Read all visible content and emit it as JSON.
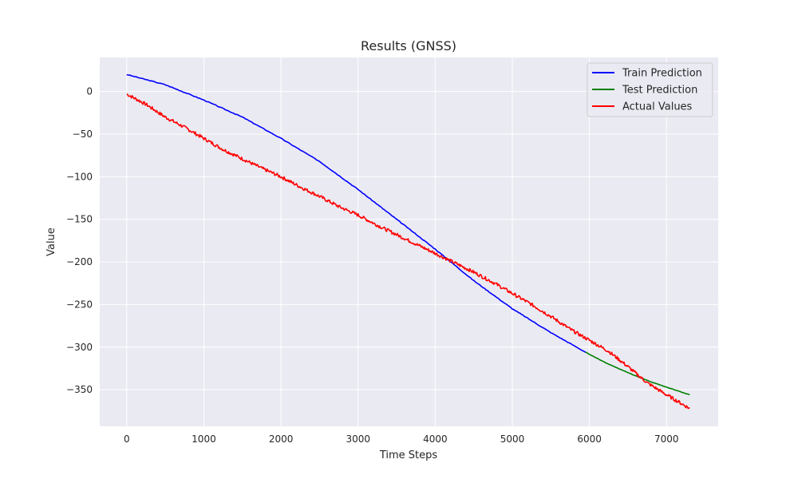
{
  "chart_data": {
    "type": "line",
    "title": "Results (GNSS)",
    "xlabel": "Time Steps",
    "ylabel": "Value",
    "xlim": [
      -350,
      7670
    ],
    "ylim": [
      -393,
      40
    ],
    "xticks": [
      0,
      1000,
      2000,
      3000,
      4000,
      5000,
      6000,
      7000
    ],
    "yticks": [
      0,
      -50,
      -100,
      -150,
      -200,
      -250,
      -300,
      -350
    ],
    "ytick_labels": [
      "0",
      "−50",
      "−100",
      "−150",
      "−200",
      "−250",
      "−300",
      "−350"
    ],
    "grid": true,
    "legend_position": "top-right",
    "series": [
      {
        "name": "Train Prediction",
        "color": "#0000ff",
        "x": [
          0,
          500,
          1000,
          1500,
          2000,
          2500,
          3000,
          3500,
          4000,
          4500,
          5000,
          5500,
          5950
        ],
        "y": [
          20,
          8,
          -10,
          -30,
          -55,
          -82,
          -115,
          -150,
          -185,
          -222,
          -255,
          -283,
          -306
        ]
      },
      {
        "name": "Test Prediction",
        "color": "#008000",
        "x": [
          5950,
          6200,
          6500,
          6800,
          7000,
          7200,
          7300
        ],
        "y": [
          -306,
          -318,
          -330,
          -341,
          -347,
          -353,
          -356
        ]
      },
      {
        "name": "Actual Values",
        "color": "#ff0000",
        "x": [
          0,
          250,
          500,
          750,
          1000,
          1250,
          1500,
          1750,
          2000,
          2250,
          2500,
          2750,
          3000,
          3250,
          3500,
          3750,
          4000,
          4250,
          4500,
          4750,
          5000,
          5250,
          5500,
          5750,
          6000,
          6250,
          6500,
          6750,
          7000,
          7300
        ],
        "y": [
          -3,
          -15,
          -30,
          -42,
          -55,
          -68,
          -79,
          -90,
          -100,
          -112,
          -123,
          -135,
          -145,
          -157,
          -168,
          -179,
          -190,
          -201,
          -212,
          -224,
          -237,
          -250,
          -264,
          -279,
          -292,
          -305,
          -323,
          -342,
          -356,
          -372
        ]
      }
    ]
  }
}
